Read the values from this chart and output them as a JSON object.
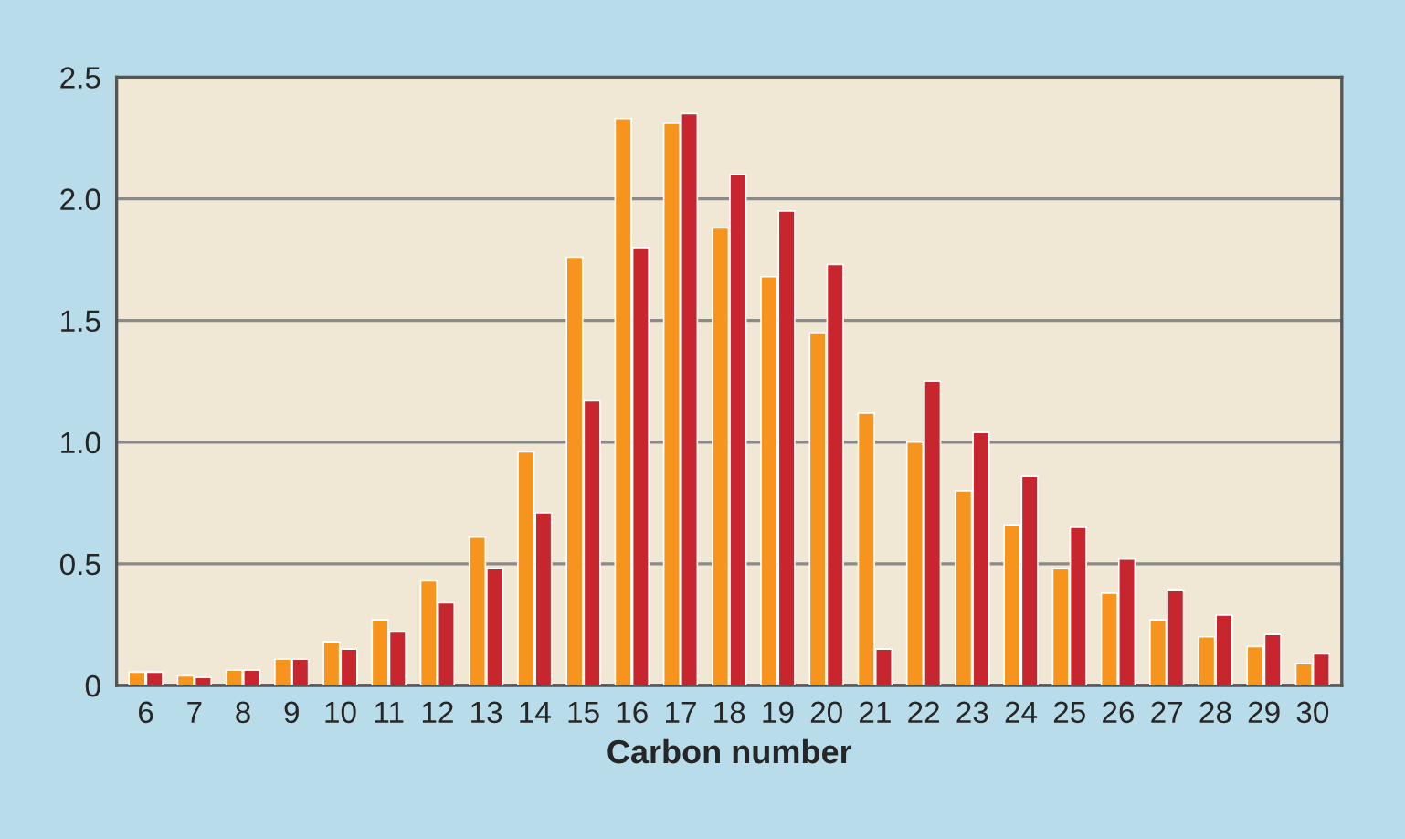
{
  "chart_data": {
    "type": "bar",
    "xlabel": "Carbon number",
    "categories": [
      "6",
      "7",
      "8",
      "9",
      "10",
      "11",
      "12",
      "13",
      "14",
      "15",
      "16",
      "17",
      "18",
      "19",
      "20",
      "21",
      "22",
      "23",
      "24",
      "25",
      "26",
      "27",
      "28",
      "29",
      "30"
    ],
    "series": [
      {
        "color": "#f7941d",
        "values": [
          0.055,
          0.04,
          0.063,
          0.108,
          0.18,
          0.27,
          0.43,
          0.61,
          0.96,
          1.76,
          2.33,
          2.31,
          1.88,
          1.68,
          1.45,
          1.12,
          1.0,
          0.8,
          0.66,
          0.48,
          0.38,
          0.27,
          0.2,
          0.16,
          0.09
        ]
      },
      {
        "color": "#c8262e",
        "values": [
          0.055,
          0.033,
          0.063,
          0.108,
          0.15,
          0.22,
          0.34,
          0.48,
          0.71,
          1.17,
          1.8,
          2.35,
          2.1,
          1.95,
          1.73,
          0.15,
          1.25,
          1.04,
          0.86,
          0.65,
          0.52,
          0.39,
          0.29,
          0.21,
          0.13
        ]
      }
    ],
    "ylim": [
      0,
      2.5
    ],
    "yticks": [
      {
        "value": 0,
        "label": "0"
      },
      {
        "value": 0.5,
        "label": "0.5"
      },
      {
        "value": 1.0,
        "label": "1.0"
      },
      {
        "value": 1.5,
        "label": "1.5"
      },
      {
        "value": 2.0,
        "label": "2.0"
      },
      {
        "value": 2.5,
        "label": "2.5"
      }
    ],
    "grid": "y"
  }
}
